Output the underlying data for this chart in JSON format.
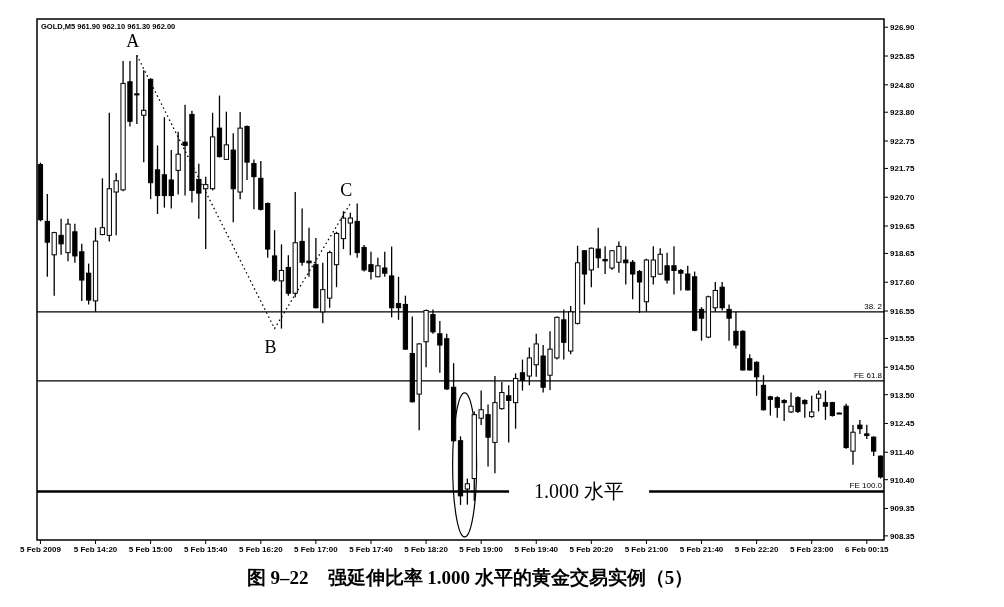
{
  "chart_data": {
    "type": "candlestick",
    "title": "图 9–22　强延伸比率 1.000 水平的黄金交易实例（5）",
    "subtitle": "GOLD,M5 961.90 962.10 961.30 962.00",
    "color": "#000000",
    "categories": [
      "5 Feb 2009",
      null,
      null,
      null,
      null,
      null,
      null,
      null,
      "5 Feb 14:20",
      null,
      null,
      null,
      null,
      null,
      null,
      null,
      "5 Feb 15:00",
      null,
      null,
      null,
      null,
      null,
      null,
      null,
      "5 Feb 15:40",
      null,
      null,
      null,
      null,
      null,
      null,
      null,
      "5 Feb 16:20",
      null,
      null,
      null,
      null,
      null,
      null,
      null,
      "5 Feb 17:00",
      null,
      null,
      null,
      null,
      null,
      null,
      null,
      "5 Feb 17:40",
      null,
      null,
      null,
      null,
      null,
      null,
      null,
      "5 Feb 18:20",
      null,
      null,
      null,
      null,
      null,
      null,
      null,
      "5 Feb 19:00",
      null,
      null,
      null,
      null,
      null,
      null,
      null,
      "5 Feb 19:40",
      null,
      null,
      null,
      null,
      null,
      null,
      null,
      "5 Feb 20:20",
      null,
      null,
      null,
      null,
      null,
      null,
      null,
      "5 Feb 21:00",
      null,
      null,
      null,
      null,
      null,
      null,
      null,
      "5 Feb 21:40",
      null,
      null,
      null,
      null,
      null,
      null,
      null,
      "5 Feb 22:20",
      null,
      null,
      null,
      null,
      null,
      null,
      null,
      "5 Feb 23:00",
      null,
      null,
      null,
      null,
      null,
      null,
      null,
      "6 Feb 00:15",
      null,
      null
    ],
    "ohlc": [
      [
        921.89,
        921.96,
        919.82,
        919.88
      ],
      [
        919.82,
        920.82,
        917.8,
        919.06
      ],
      [
        918.6,
        919.44,
        917.11,
        919.41
      ],
      [
        919.31,
        919.92,
        918.6,
        919.0
      ],
      [
        918.68,
        919.92,
        918.37,
        919.72
      ],
      [
        919.44,
        919.73,
        918.31,
        918.56
      ],
      [
        918.71,
        919.0,
        916.92,
        917.68
      ],
      [
        917.93,
        918.28,
        916.79,
        916.95
      ],
      [
        916.92,
        919.59,
        916.52,
        919.1
      ],
      [
        919.34,
        921.39,
        919.31,
        919.59
      ],
      [
        919.31,
        923.78,
        919.09,
        921.01
      ],
      [
        920.89,
        921.58,
        919.31,
        921.3
      ],
      [
        920.97,
        925.67,
        920.92,
        924.85
      ],
      [
        924.91,
        925.67,
        923.28,
        923.47
      ],
      [
        924.47,
        925.88,
        923.37,
        924.45
      ],
      [
        923.69,
        925.33,
        921.98,
        923.87
      ],
      [
        925.0,
        925.04,
        920.63,
        921.23
      ],
      [
        921.7,
        922.59,
        920.09,
        920.76
      ],
      [
        921.52,
        923.62,
        920.32,
        920.76
      ],
      [
        921.33,
        922.42,
        920.29,
        920.76
      ],
      [
        921.68,
        923.09,
        920.8,
        922.27
      ],
      [
        922.71,
        924.07,
        920.76,
        922.59
      ],
      [
        923.72,
        923.85,
        920.51,
        920.95
      ],
      [
        921.35,
        921.92,
        919.92,
        920.85
      ],
      [
        921.01,
        921.45,
        918.81,
        921.16
      ],
      [
        921.01,
        923.78,
        920.95,
        922.9
      ],
      [
        923.22,
        924.41,
        922.15,
        922.18
      ],
      [
        922.08,
        923.82,
        922.06,
        922.61
      ],
      [
        922.42,
        923.03,
        919.79,
        921.01
      ],
      [
        920.89,
        923.81,
        920.63,
        923.22
      ],
      [
        923.28,
        923.32,
        921.33,
        921.98
      ],
      [
        921.93,
        922.08,
        920.26,
        921.45
      ],
      [
        921.39,
        922.02,
        920.22,
        920.26
      ],
      [
        920.47,
        920.51,
        918.49,
        918.81
      ],
      [
        918.56,
        919.5,
        917.61,
        917.68
      ],
      [
        917.65,
        918.98,
        915.91,
        918.03
      ],
      [
        918.14,
        918.58,
        917.11,
        917.2
      ],
      [
        917.2,
        920.89,
        917.05,
        919.04
      ],
      [
        919.09,
        920.29,
        918.2,
        918.33
      ],
      [
        918.37,
        919.59,
        917.8,
        918.31
      ],
      [
        918.24,
        919.21,
        916.64,
        916.67
      ],
      [
        916.52,
        918.31,
        916.1,
        917.33
      ],
      [
        917.02,
        918.75,
        916.67,
        918.68
      ],
      [
        918.24,
        919.44,
        917.42,
        919.38
      ],
      [
        919.19,
        920.19,
        918.81,
        919.94
      ],
      [
        919.76,
        920.13,
        918.58,
        919.94
      ],
      [
        919.82,
        920.47,
        918.49,
        918.68
      ],
      [
        918.87,
        918.96,
        917.99,
        918.05
      ],
      [
        918.24,
        918.71,
        917.7,
        917.99
      ],
      [
        917.8,
        918.49,
        917.78,
        918.2
      ],
      [
        918.12,
        918.71,
        917.8,
        917.93
      ],
      [
        917.83,
        918.9,
        916.32,
        916.67
      ],
      [
        916.82,
        917.8,
        916.23,
        916.67
      ],
      [
        916.79,
        917.11,
        915.13,
        915.16
      ],
      [
        915.0,
        916.35,
        913.21,
        913.24
      ],
      [
        913.52,
        915.38,
        912.2,
        915.35
      ],
      [
        915.43,
        916.61,
        914.5,
        916.57
      ],
      [
        916.42,
        916.61,
        915.72,
        915.79
      ],
      [
        915.72,
        916.19,
        914.3,
        915.31
      ],
      [
        915.54,
        915.72,
        913.67,
        913.71
      ],
      [
        913.77,
        914.65,
        911.78,
        911.82
      ],
      [
        911.82,
        911.98,
        909.48,
        909.81
      ],
      [
        910.06,
        910.44,
        909.49,
        910.25
      ],
      [
        910.44,
        912.89,
        909.62,
        912.77
      ],
      [
        912.64,
        913.65,
        912.39,
        912.95
      ],
      [
        912.77,
        913.14,
        910.88,
        911.95
      ],
      [
        911.76,
        914.18,
        910.63,
        913.21
      ],
      [
        912.99,
        913.96,
        912.95,
        913.58
      ],
      [
        913.46,
        913.84,
        911.76,
        913.29
      ],
      [
        913.21,
        914.28,
        912.26,
        914.09
      ],
      [
        914.3,
        914.78,
        913.65,
        914.02
      ],
      [
        914.18,
        915.22,
        913.84,
        914.84
      ],
      [
        914.59,
        915.72,
        914.15,
        915.35
      ],
      [
        914.91,
        915.31,
        913.58,
        913.77
      ],
      [
        914.21,
        915.81,
        913.67,
        915.16
      ],
      [
        914.84,
        916.35,
        914.78,
        916.32
      ],
      [
        916.23,
        916.61,
        914.78,
        915.41
      ],
      [
        915.09,
        916.73,
        914.97,
        916.52
      ],
      [
        916.1,
        918.93,
        916.06,
        918.31
      ],
      [
        918.75,
        918.77,
        916.79,
        917.9
      ],
      [
        918.05,
        918.87,
        917.42,
        918.84
      ],
      [
        918.81,
        919.59,
        918.12,
        918.49
      ],
      [
        918.43,
        918.91,
        917.9,
        918.38
      ],
      [
        918.12,
        918.77,
        918.05,
        918.75
      ],
      [
        918.33,
        919.09,
        917.95,
        918.91
      ],
      [
        918.41,
        918.91,
        917.52,
        918.31
      ],
      [
        918.33,
        918.41,
        916.98,
        917.9
      ],
      [
        917.99,
        918.05,
        916.48,
        917.61
      ],
      [
        916.89,
        918.46,
        916.52,
        918.41
      ],
      [
        917.8,
        918.91,
        917.52,
        918.41
      ],
      [
        917.9,
        918.84,
        917.86,
        918.62
      ],
      [
        918.2,
        918.68,
        917.55,
        917.68
      ],
      [
        918.2,
        918.91,
        917.15,
        918.03
      ],
      [
        918.03,
        918.08,
        917.3,
        917.93
      ],
      [
        917.9,
        918.2,
        917.3,
        917.32
      ],
      [
        917.8,
        917.99,
        915.81,
        915.85
      ],
      [
        916.61,
        916.69,
        915.47,
        916.29
      ],
      [
        915.6,
        917.11,
        915.56,
        917.07
      ],
      [
        916.67,
        917.61,
        916.52,
        917.3
      ],
      [
        917.42,
        917.61,
        916.57,
        916.67
      ],
      [
        916.61,
        916.79,
        915.47,
        916.29
      ],
      [
        915.81,
        916.52,
        915.18,
        915.31
      ],
      [
        915.81,
        915.85,
        914.38,
        914.4
      ],
      [
        914.81,
        914.97,
        914.38,
        914.4
      ],
      [
        914.68,
        914.72,
        913.46,
        914.15
      ],
      [
        913.84,
        914.21,
        912.92,
        912.95
      ],
      [
        913.42,
        913.46,
        912.74,
        913.33
      ],
      [
        913.39,
        913.44,
        912.66,
        913.04
      ],
      [
        913.29,
        913.33,
        912.54,
        913.21
      ],
      [
        912.87,
        913.58,
        912.83,
        913.08
      ],
      [
        913.39,
        913.44,
        912.83,
        912.89
      ],
      [
        913.29,
        913.33,
        912.66,
        913.17
      ],
      [
        912.7,
        913.46,
        912.66,
        912.87
      ],
      [
        913.37,
        913.65,
        912.89,
        913.52
      ],
      [
        913.21,
        913.65,
        912.58,
        913.08
      ],
      [
        913.21,
        913.24,
        912.7,
        912.74
      ],
      [
        912.83,
        912.85,
        912.8,
        912.83
      ],
      [
        913.08,
        913.17,
        911.53,
        911.57
      ],
      [
        911.44,
        912.39,
        910.94,
        912.13
      ],
      [
        912.39,
        912.58,
        912.07,
        912.26
      ],
      [
        912.07,
        912.4,
        911.88,
        912.01
      ],
      [
        911.95,
        911.98,
        911.26,
        911.44
      ],
      [
        911.26,
        911.28,
        910.44,
        910.5
      ]
    ],
    "series": [
      {
        "type": "line",
        "line_style": "dotted",
        "color": "#000000",
        "values": [
          null,
          null,
          null,
          null,
          null,
          null,
          null,
          null,
          null,
          null,
          null,
          null,
          null,
          null,
          925.88,
          null,
          null,
          null,
          null,
          null,
          null,
          null,
          null,
          null,
          null,
          null,
          null,
          null,
          null,
          null,
          null,
          null,
          null,
          null,
          915.91,
          null,
          null,
          null,
          null,
          null,
          null,
          null,
          null,
          null,
          null,
          920.47,
          null,
          null,
          null,
          null,
          null,
          null,
          null,
          null,
          null,
          null,
          null,
          null,
          null,
          null,
          null,
          null,
          null,
          null,
          null,
          null,
          null,
          null,
          null,
          null,
          null,
          null,
          null,
          null,
          null,
          null,
          null,
          null,
          null,
          null,
          null,
          null,
          null,
          null,
          null,
          null,
          null,
          null,
          null,
          null,
          null,
          null,
          null,
          null,
          null,
          null,
          null,
          null,
          null,
          null,
          null,
          null,
          null,
          null,
          null,
          null,
          null,
          null,
          null,
          null,
          null,
          null,
          null,
          null,
          null,
          null,
          null,
          null,
          null,
          null,
          null,
          null,
          null
        ],
        "value_labels": [
          null,
          null,
          null,
          null,
          null,
          null,
          null,
          null,
          null,
          null,
          null,
          null,
          null,
          null,
          "A",
          null,
          null,
          null,
          null,
          null,
          null,
          null,
          null,
          null,
          null,
          null,
          null,
          null,
          null,
          null,
          null,
          null,
          null,
          null,
          "B",
          null,
          null,
          null,
          null,
          null,
          null,
          null,
          null,
          null,
          null,
          "C",
          null,
          null,
          null,
          null,
          null,
          null,
          null,
          null,
          null,
          null,
          null,
          null,
          null,
          null,
          null,
          null,
          null,
          null,
          null,
          null,
          null,
          null,
          null,
          null,
          null,
          null,
          null,
          null,
          null,
          null,
          null,
          null,
          null,
          null,
          null,
          null,
          null,
          null,
          null,
          null,
          null,
          null,
          null,
          null,
          null,
          null,
          null,
          null,
          null,
          null,
          null,
          null,
          null,
          null,
          null,
          null,
          null,
          null,
          null,
          null,
          null,
          null,
          null,
          null,
          null,
          null,
          null,
          null,
          null,
          null,
          null,
          null,
          null,
          null,
          null,
          null,
          null
        ]
      }
    ],
    "ylim": [
      908.2,
      927.2
    ],
    "yticks": [
      {
        "value": 926.9,
        "label": "926.90"
      },
      {
        "value": 925.85,
        "label": "925.85"
      },
      {
        "value": 924.8,
        "label": "924.80"
      },
      {
        "value": 923.8,
        "label": "923.80"
      },
      {
        "value": 922.75,
        "label": "922.75"
      },
      {
        "value": 921.75,
        "label": "921.75"
      },
      {
        "value": 920.7,
        "label": "920.70"
      },
      {
        "value": 919.65,
        "label": "919.65"
      },
      {
        "value": 918.65,
        "label": "918.65"
      },
      {
        "value": 917.6,
        "label": "917.60"
      },
      {
        "value": 916.55,
        "label": "916.55"
      },
      {
        "value": 915.55,
        "label": "915.55"
      },
      {
        "value": 914.5,
        "label": "914.50"
      },
      {
        "value": 913.5,
        "label": "913.50"
      },
      {
        "value": 912.45,
        "label": "912.45"
      },
      {
        "value": 911.4,
        "label": "911.40"
      },
      {
        "value": 910.4,
        "label": "910.40"
      },
      {
        "value": 909.35,
        "label": "909.35"
      },
      {
        "value": 908.35,
        "label": "908.35"
      }
    ],
    "ref_lines": [
      {
        "axis": "y",
        "value": 916.52
      },
      {
        "axis": "y",
        "value": 914.0,
        "label": "FE 61.8"
      },
      {
        "axis": "y",
        "value": 909.97,
        "label": "FE 100.0"
      }
    ],
    "annotations": [
      "38. 2",
      {
        "text": "1.000 水平",
        "y": 909.97
      }
    ]
  }
}
